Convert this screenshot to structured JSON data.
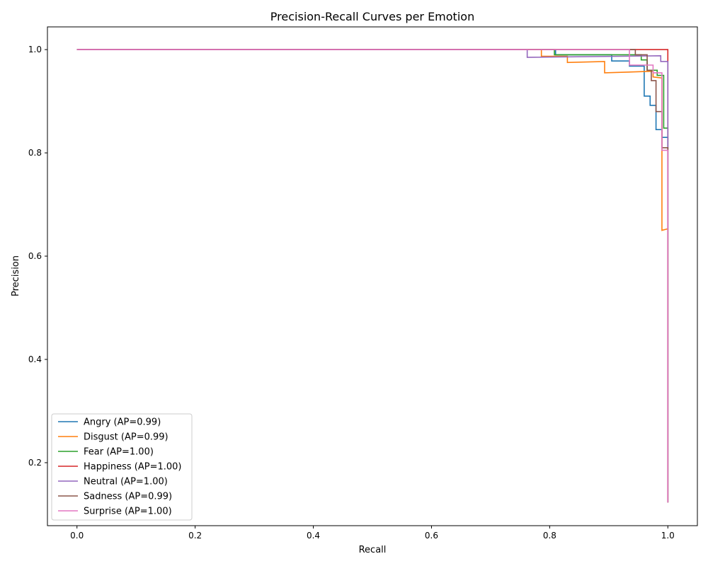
{
  "chart_data": {
    "type": "line",
    "title": "Precision-Recall Curves per Emotion",
    "xlabel": "Recall",
    "ylabel": "Precision",
    "xlim": [
      -0.05,
      1.05
    ],
    "ylim": [
      0.078,
      1.044
    ],
    "x_ticks": [
      0.0,
      0.2,
      0.4,
      0.6,
      0.8,
      1.0
    ],
    "x_tick_labels": [
      "0.0",
      "0.2",
      "0.4",
      "0.6",
      "0.8",
      "1.0"
    ],
    "y_ticks": [
      0.2,
      0.4,
      0.6,
      0.8,
      1.0
    ],
    "y_tick_labels": [
      "0.2",
      "0.4",
      "0.6",
      "0.8",
      "1.0"
    ],
    "grid": false,
    "legend_position": "lower-left",
    "series": [
      {
        "name": "Angry (AP=0.99)",
        "color": "#1f77b4",
        "x": [
          0.0,
          0.81,
          0.81,
          0.905,
          0.905,
          0.935,
          0.935,
          0.96,
          0.96,
          0.97,
          0.97,
          0.98,
          0.98,
          0.99,
          0.99,
          1.0,
          1.0
        ],
        "y": [
          1.0,
          1.0,
          0.99,
          0.99,
          0.978,
          0.978,
          0.968,
          0.968,
          0.91,
          0.91,
          0.892,
          0.892,
          0.845,
          0.845,
          0.83,
          0.83,
          0.123
        ]
      },
      {
        "name": "Disgust (AP=0.99)",
        "color": "#ff7f0e",
        "x": [
          0.0,
          0.786,
          0.786,
          0.83,
          0.83,
          0.893,
          0.893,
          0.975,
          0.975,
          0.99,
          0.99,
          1.0,
          1.0
        ],
        "y": [
          1.0,
          1.0,
          0.987,
          0.987,
          0.975,
          0.977,
          0.955,
          0.958,
          0.947,
          0.945,
          0.65,
          0.653,
          0.123
        ]
      },
      {
        "name": "Fear (AP=1.00)",
        "color": "#2ca02c",
        "x": [
          0.0,
          0.808,
          0.808,
          0.955,
          0.955,
          0.965,
          0.965,
          0.982,
          0.982,
          0.993,
          0.993,
          1.0,
          1.0
        ],
        "y": [
          1.0,
          1.0,
          0.99,
          0.99,
          0.98,
          0.98,
          0.96,
          0.96,
          0.95,
          0.95,
          0.848,
          0.848,
          0.123
        ]
      },
      {
        "name": "Happiness (AP=1.00)",
        "color": "#d62728",
        "x": [
          0.0,
          1.0,
          1.0
        ],
        "y": [
          1.0,
          1.0,
          0.123
        ]
      },
      {
        "name": "Neutral (AP=1.00)",
        "color": "#9467bd",
        "x": [
          0.0,
          0.762,
          0.762,
          0.988,
          0.988,
          1.0,
          1.0
        ],
        "y": [
          1.0,
          1.0,
          0.985,
          0.988,
          0.977,
          0.977,
          0.123
        ]
      },
      {
        "name": "Sadness (AP=0.99)",
        "color": "#8c564b",
        "x": [
          0.0,
          0.945,
          0.945,
          0.965,
          0.965,
          0.972,
          0.972,
          0.98,
          0.98,
          0.99,
          0.99,
          1.0,
          1.0
        ],
        "y": [
          1.0,
          1.0,
          0.99,
          0.99,
          0.96,
          0.96,
          0.94,
          0.94,
          0.88,
          0.88,
          0.81,
          0.81,
          0.123
        ]
      },
      {
        "name": "Surprise (AP=1.00)",
        "color": "#e377c2",
        "x": [
          0.0,
          0.935,
          0.935,
          0.975,
          0.975,
          0.99,
          0.99,
          1.0,
          1.0
        ],
        "y": [
          1.0,
          1.0,
          0.97,
          0.97,
          0.955,
          0.955,
          0.805,
          0.805,
          0.123
        ]
      }
    ]
  }
}
